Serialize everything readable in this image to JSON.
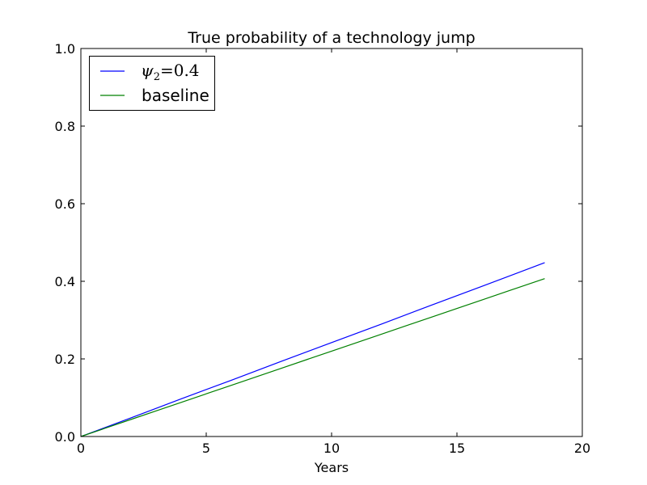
{
  "chart_data": {
    "type": "line",
    "title": "True probability of a technology jump",
    "xlabel": "Years",
    "ylabel": "",
    "xlim": [
      0,
      20
    ],
    "ylim": [
      0,
      1
    ],
    "xticks": [
      0,
      5,
      10,
      15,
      20
    ],
    "yticks": [
      0.0,
      0.2,
      0.4,
      0.6,
      0.8,
      1.0
    ],
    "xtick_labels": [
      "0",
      "5",
      "10",
      "15",
      "20"
    ],
    "ytick_labels": [
      "0.0",
      "0.2",
      "0.4",
      "0.6",
      "0.8",
      "1.0"
    ],
    "grid": false,
    "legend_position": "top-left",
    "series": [
      {
        "name": "ψ2 = 0.4",
        "color": "#0000ff",
        "x": [
          0,
          2,
          4,
          6,
          8,
          10,
          12,
          14,
          16,
          18.5
        ],
        "y": [
          0.0,
          0.048,
          0.097,
          0.145,
          0.194,
          0.242,
          0.29,
          0.339,
          0.387,
          0.448
        ]
      },
      {
        "name": "baseline",
        "color": "#008000",
        "x": [
          0,
          2,
          4,
          6,
          8,
          10,
          12,
          14,
          16,
          18.5
        ],
        "y": [
          0.0,
          0.044,
          0.088,
          0.132,
          0.176,
          0.22,
          0.264,
          0.308,
          0.352,
          0.407
        ]
      }
    ]
  }
}
